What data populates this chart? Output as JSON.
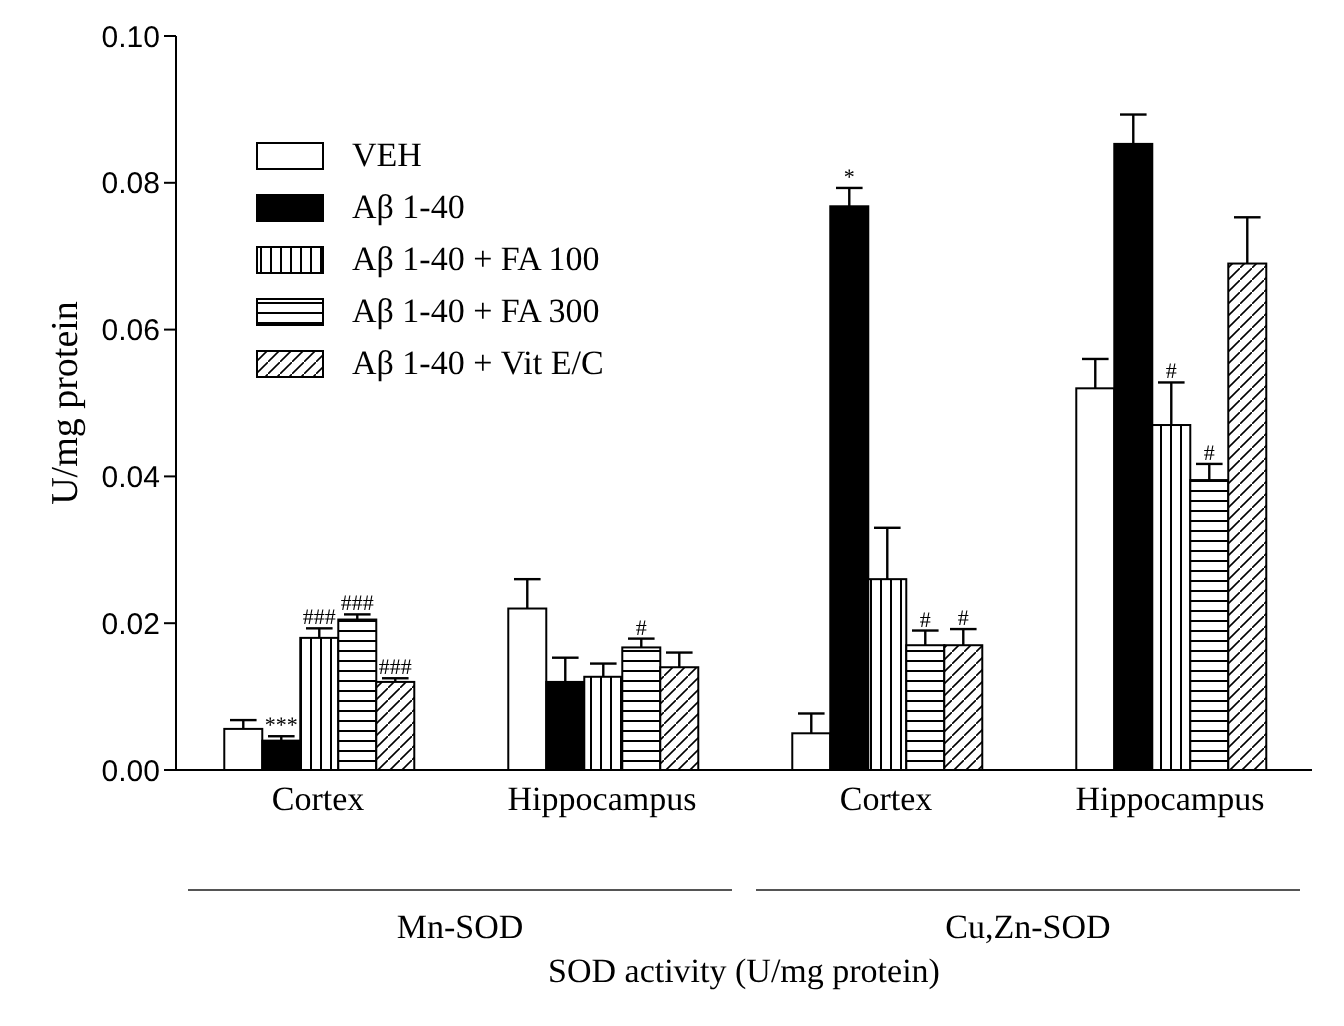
{
  "chart_data": {
    "type": "bar",
    "ylabel": "U/mg protein",
    "xlabel": "SOD activity (U/mg protein)",
    "categories": [
      "Cortex",
      "Hippocampus",
      "Cortex",
      "Hippocampus"
    ],
    "series": [
      {
        "name": "VEH",
        "color": "#ffffff",
        "values": [
          0.0056,
          0.022,
          0.005,
          0.052
        ],
        "errors": [
          0.0012,
          0.004,
          0.0027,
          0.004
        ],
        "value_labels": [
          null,
          null,
          null,
          null
        ]
      },
      {
        "name": "Aβ 1-40",
        "color": "#000000",
        "values": [
          0.004,
          0.012,
          0.0768,
          0.0853
        ],
        "errors": [
          0.0006,
          0.0033,
          0.0025,
          0.004
        ],
        "value_labels": [
          "***",
          null,
          "*",
          null
        ]
      },
      {
        "name": "Aβ 1-40 + FA 100",
        "color": "#000000",
        "values": [
          0.018,
          0.0127,
          0.026,
          0.047
        ],
        "errors": [
          0.0013,
          0.0018,
          0.007,
          0.0058
        ],
        "value_labels": [
          "###",
          null,
          null,
          "#"
        ]
      },
      {
        "name": "Aβ 1-40 + FA 300",
        "color": "#000000",
        "values": [
          0.0205,
          0.0167,
          0.017,
          0.0395
        ],
        "errors": [
          0.0007,
          0.0012,
          0.002,
          0.0022
        ],
        "value_labels": [
          "###",
          "#",
          "#",
          "#"
        ]
      },
      {
        "name": "Aβ 1-40 + Vit E/C",
        "color": "#000000",
        "values": [
          0.012,
          0.014,
          0.017,
          0.069
        ],
        "errors": [
          0.0005,
          0.002,
          0.0022,
          0.0063
        ],
        "value_labels": [
          "###",
          null,
          "#",
          null
        ]
      }
    ],
    "ylim": [
      0,
      0.1
    ],
    "yticks": [
      {
        "value": 0,
        "label": "0.00"
      },
      {
        "value": 0.02,
        "label": "0.02"
      },
      {
        "value": 0.04,
        "label": "0.04"
      },
      {
        "value": 0.06,
        "label": "0.06"
      },
      {
        "value": 0.08,
        "label": "0.08"
      },
      {
        "value": 0.1,
        "label": "0.10"
      }
    ],
    "legend": "top left",
    "annotations": [
      "Mn-SOD",
      "Cu,Zn-SOD"
    ]
  }
}
